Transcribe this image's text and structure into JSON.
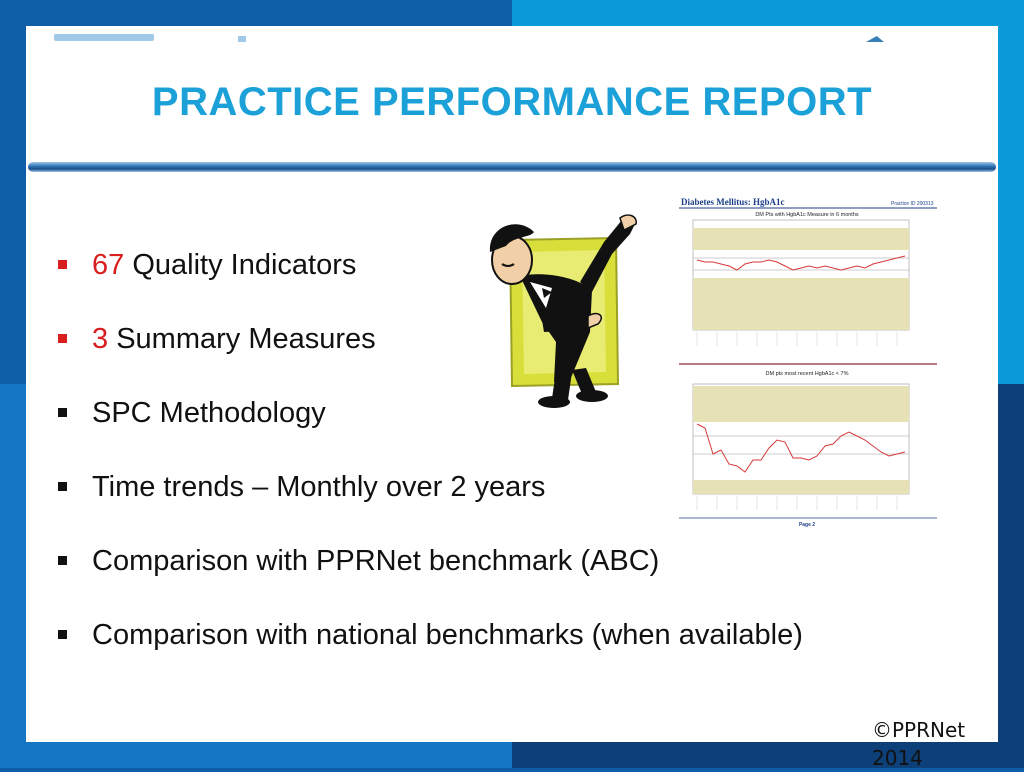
{
  "title": "PRACTICE PERFORMANCE REPORT",
  "bullets": [
    {
      "number": "67",
      "text": " Quality Indicators"
    },
    {
      "number": "3",
      "text": " Summary Measures"
    },
    {
      "number": "",
      "text": "SPC Methodology"
    },
    {
      "number": "",
      "text": "Time trends – Monthly over 2 years"
    },
    {
      "number": "",
      "text": "Comparison with PPRNet benchmark (ABC)"
    },
    {
      "number": "",
      "text": "Comparison with national benchmarks (when available)"
    }
  ],
  "report": {
    "heading": "Diabetes Mellitus: HgbA1c",
    "practice_id": "Practice ID 200313",
    "chart1_title": "DM Pts with HgbA1c Measure in 6 months",
    "chart2_title": "DM pts most recent HgbA1c < 7%",
    "page": "Page 2"
  },
  "footer": {
    "copyright": "©PPRNet",
    "year": "2014"
  },
  "colors": {
    "title": "#1ba1d8",
    "accent_number": "#d81e1e",
    "chart_band": "#e6e2b6",
    "chart_line": "#d63a3a"
  }
}
